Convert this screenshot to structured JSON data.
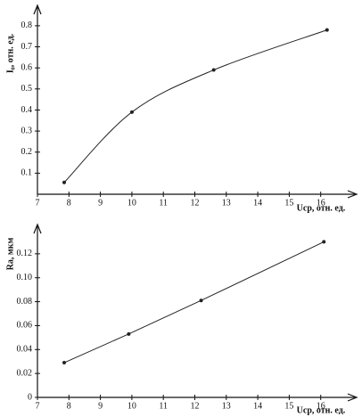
{
  "chart_data": [
    {
      "type": "line",
      "smooth": true,
      "color": "#222222",
      "ylabel": "I₀, отн. ед.",
      "xlabel": "Uср, отн. ед.",
      "x": [
        7.85,
        10,
        12.6,
        16.2
      ],
      "values": [
        0.056,
        0.39,
        0.59,
        0.78
      ],
      "xlim": [
        7,
        17
      ],
      "ylim": [
        0,
        0.88
      ],
      "xticks": [
        7,
        8,
        9,
        10,
        11,
        12,
        13,
        14,
        15,
        16
      ],
      "yticks": [
        0.1,
        0.2,
        0.3,
        0.4,
        0.5,
        0.6,
        0.7,
        0.8
      ]
    },
    {
      "type": "line",
      "smooth": false,
      "color": "#222222",
      "ylabel": "Ra, мкм",
      "xlabel": "Uср, отн. ед.",
      "x": [
        7.85,
        9.9,
        12.2,
        16.1
      ],
      "values": [
        0.029,
        0.053,
        0.081,
        0.13
      ],
      "xlim": [
        7,
        17
      ],
      "ylim": [
        0,
        0.14
      ],
      "xticks": [
        7,
        8,
        9,
        10,
        11,
        12,
        13,
        14,
        15,
        16
      ],
      "yticks": [
        0,
        0.02,
        0.04,
        0.06,
        0.08,
        {
          "value": 0.1,
          "label": "0.10"
        },
        0.12
      ]
    }
  ]
}
